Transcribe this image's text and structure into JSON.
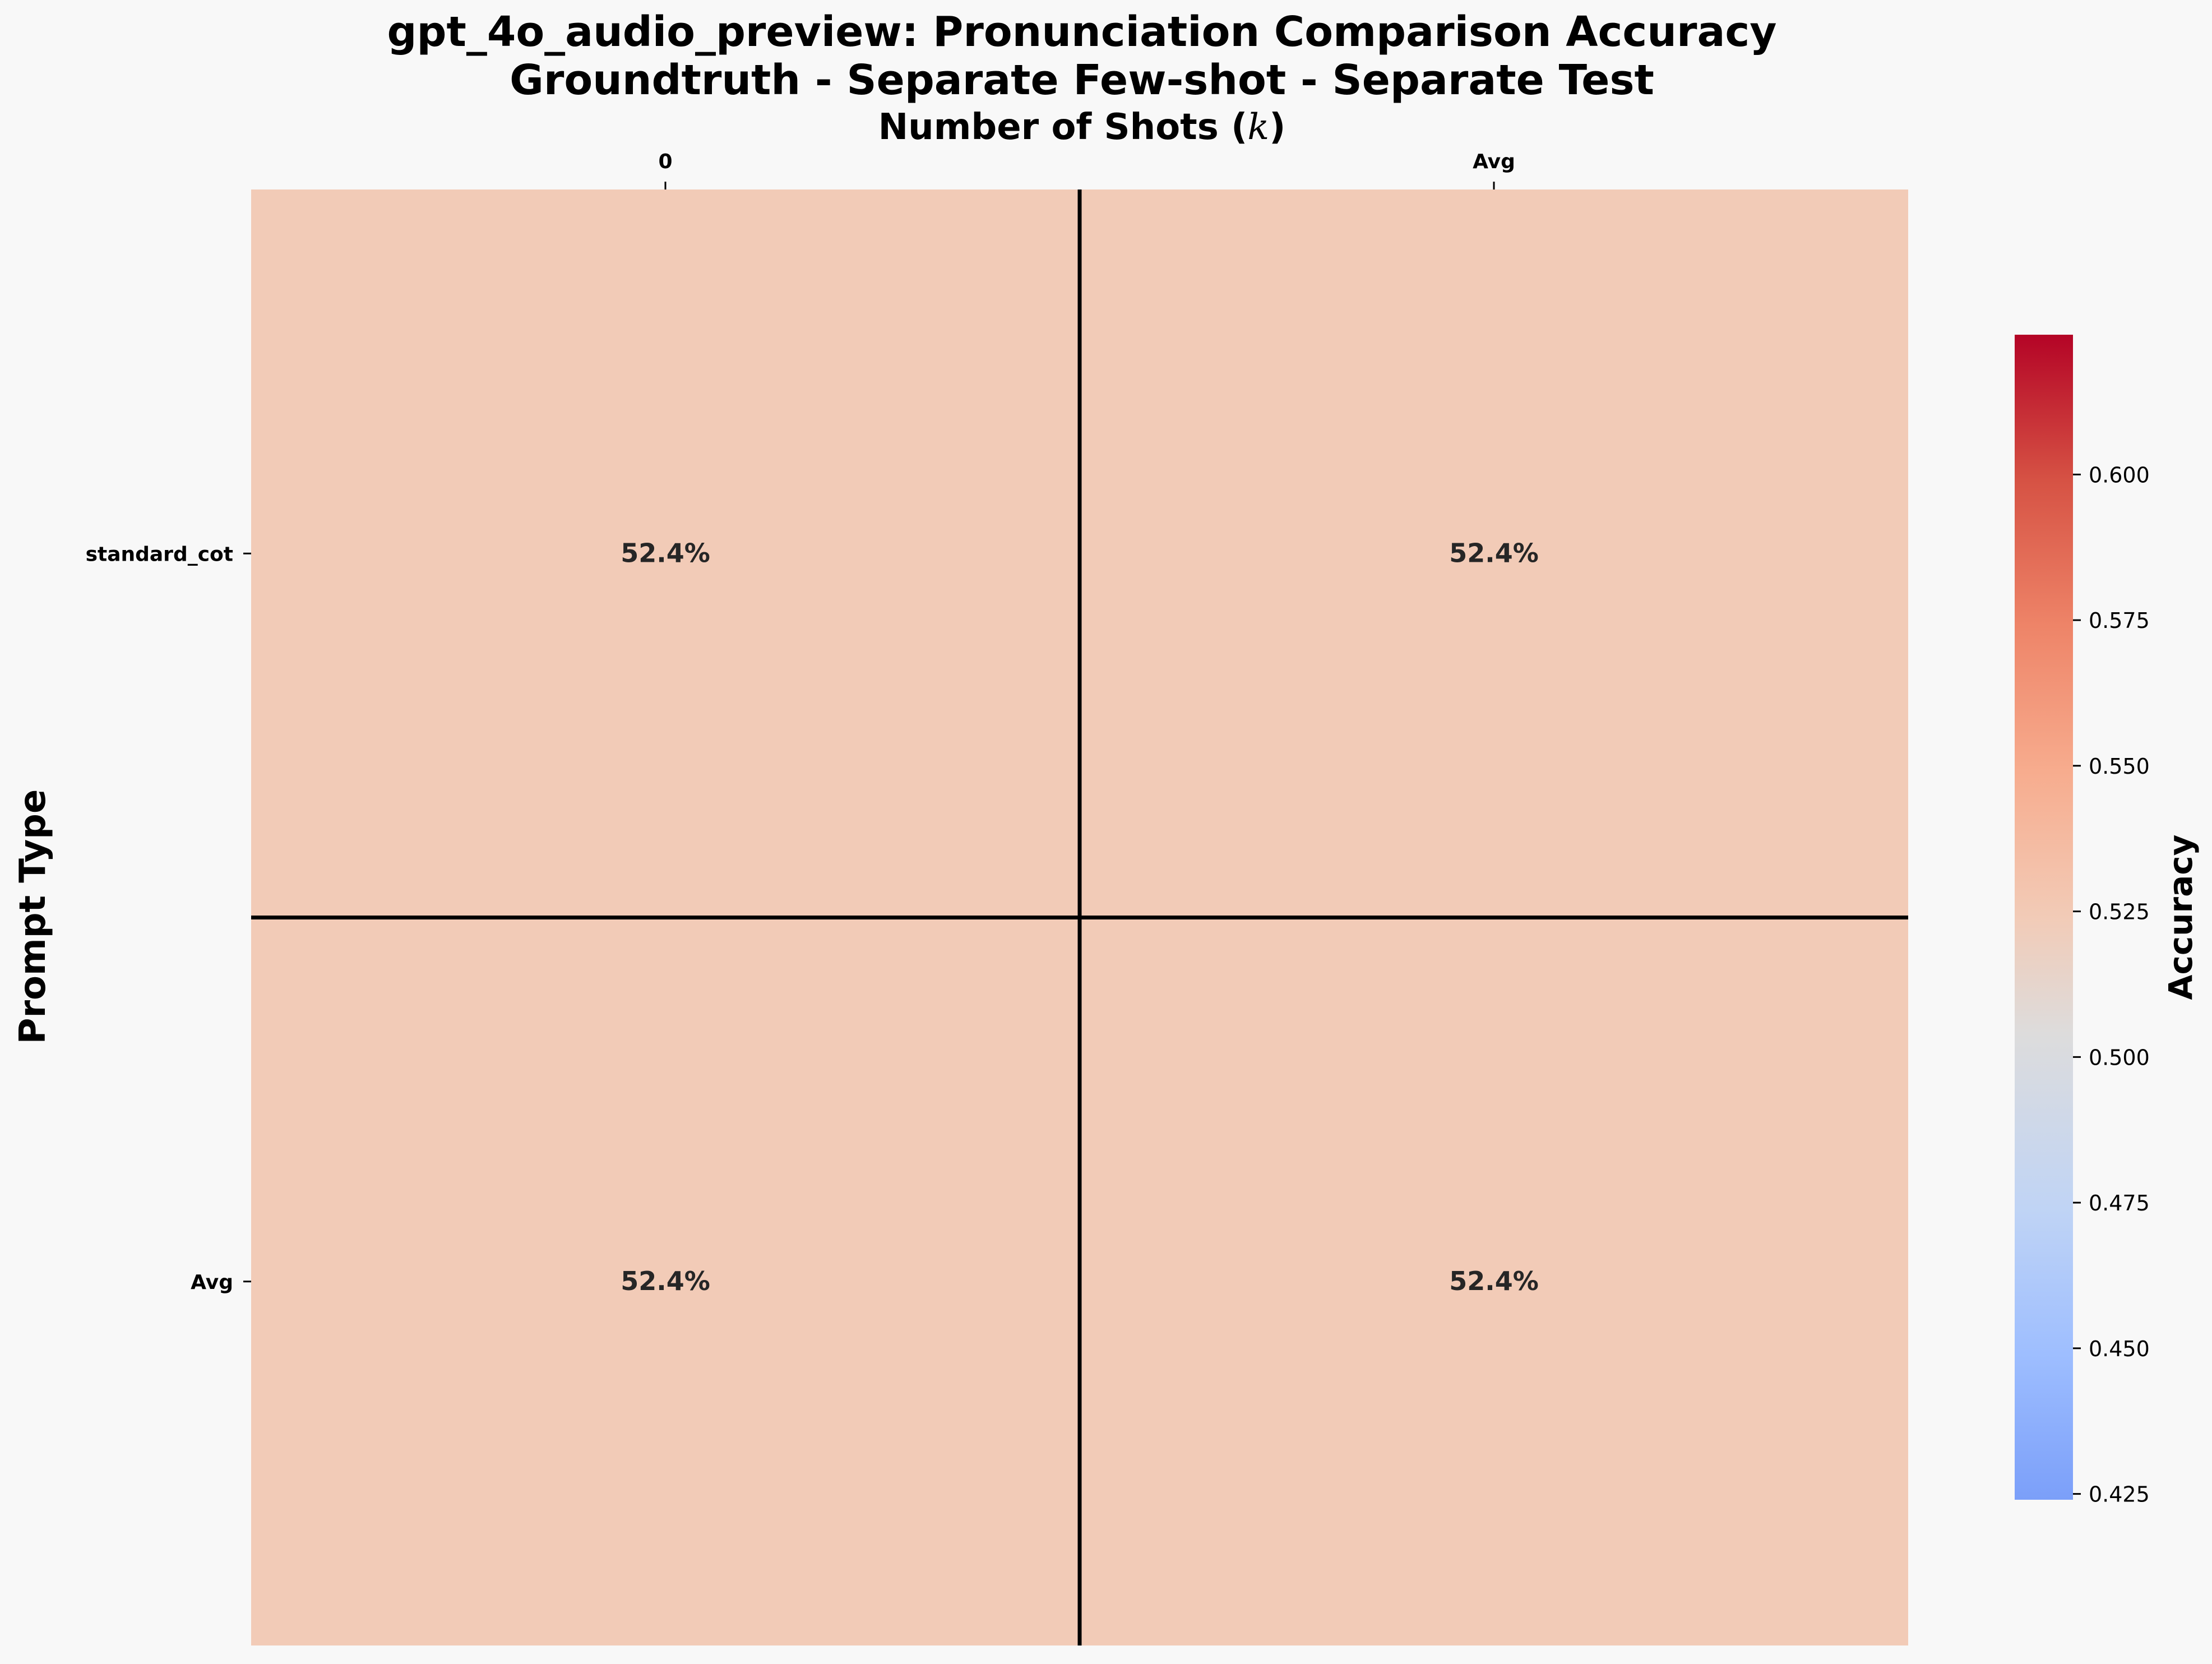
{
  "chart_data": {
    "type": "heatmap",
    "title": "gpt_4o_audio_preview: Pronunciation Comparison Accuracy",
    "subtitle": "Groundtruth - Separate Few-shot - Separate Test",
    "xlabel": "Number of Shots ($k$)",
    "xlabel_prefix": "Number of Shots (",
    "xlabel_var": "k",
    "xlabel_suffix": ")",
    "ylabel": "Prompt Type",
    "x_categories": [
      "0",
      "Avg"
    ],
    "y_categories": [
      "standard_cot",
      "Avg"
    ],
    "values": [
      [
        0.524,
        0.524
      ],
      [
        0.524,
        0.524
      ]
    ],
    "cell_labels": [
      [
        "52.4%",
        "52.4%"
      ],
      [
        "52.4%",
        "52.4%"
      ]
    ],
    "colorbar": {
      "label": "Accuracy",
      "vmin": 0.424,
      "vmax": 0.624,
      "ticks": [
        "0.425",
        "0.450",
        "0.475",
        "0.500",
        "0.525",
        "0.550",
        "0.575",
        "0.600"
      ],
      "colormap": "coolwarm"
    },
    "grid_lines": true,
    "x_axis_position": "top",
    "legend_position": "right"
  },
  "colors": {
    "background": "#f8f8f8",
    "grid_line": "#000000",
    "text": "#000000",
    "cell_text": "#262626"
  }
}
